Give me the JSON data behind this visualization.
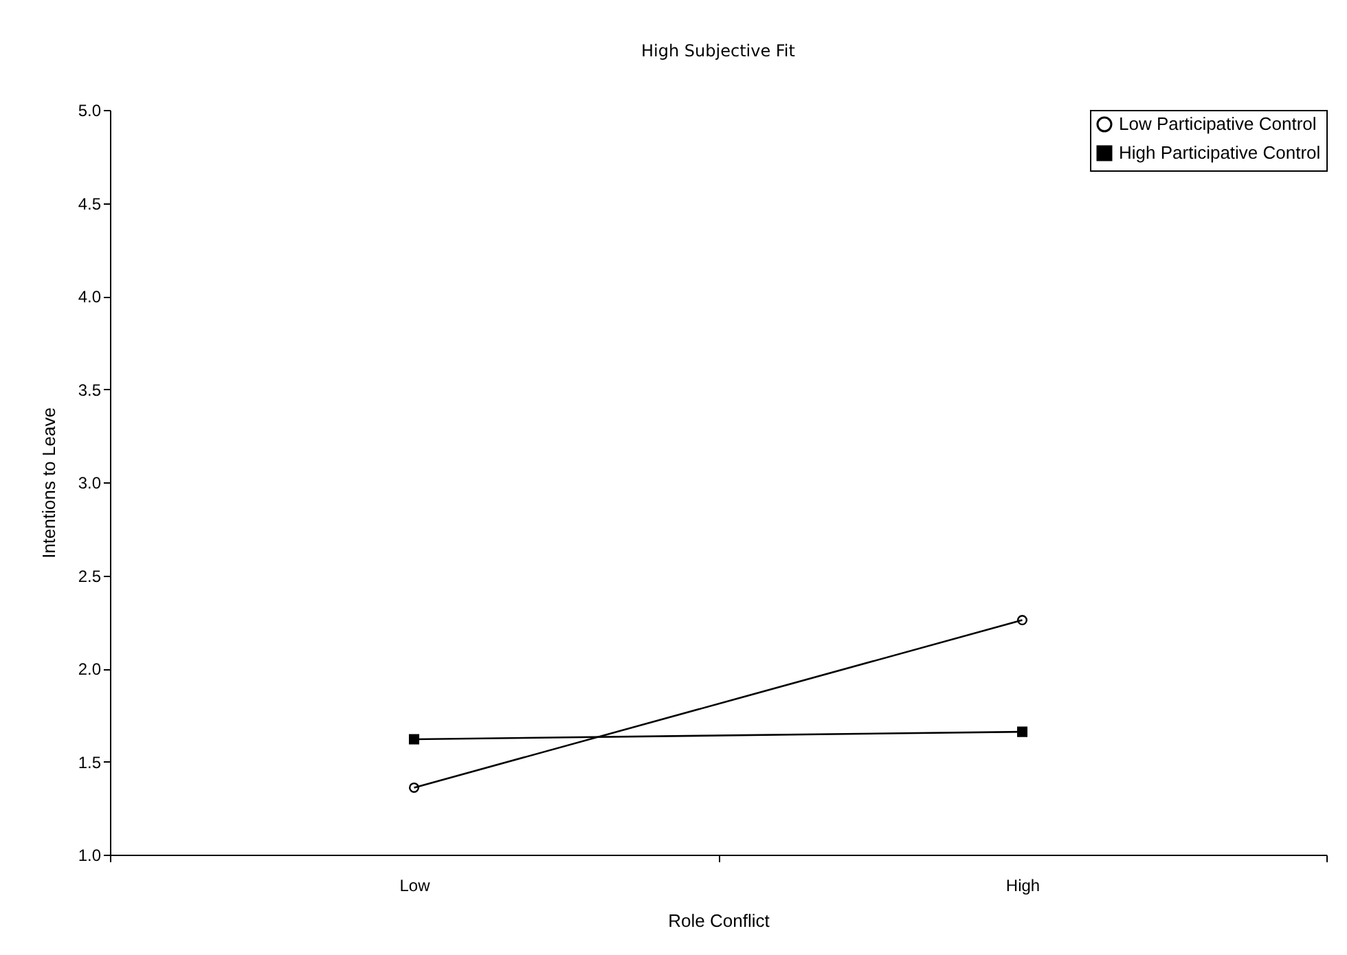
{
  "chart_data": {
    "type": "line",
    "title": "High Subjective Fit",
    "xlabel": "Role Conflict",
    "ylabel": "Intentions to Leave",
    "categories": [
      "Low",
      "High"
    ],
    "series": [
      {
        "name": "Low Participative Control",
        "color": "#000000",
        "marker": "circle",
        "values": [
          1.36,
          2.26
        ]
      },
      {
        "name": "High Participative Control",
        "color": "#000000",
        "marker": "square",
        "values": [
          1.62,
          1.66
        ]
      }
    ],
    "ylim": [
      1.0,
      5.0
    ],
    "yticks": [
      {
        "value": 1,
        "label": "1.0"
      },
      {
        "value": 1.5,
        "label": "1.5"
      },
      {
        "value": 2,
        "label": "2.0"
      },
      {
        "value": 2.5,
        "label": "2.5"
      },
      {
        "value": 3,
        "label": "3.0"
      },
      {
        "value": 3.5,
        "label": "3.5"
      },
      {
        "value": 4,
        "label": "4.0"
      },
      {
        "value": 4.5,
        "label": "4.5"
      },
      {
        "value": 5,
        "label": "5.0"
      }
    ],
    "grid": false,
    "legend": "top right",
    "line_style": "solid"
  }
}
